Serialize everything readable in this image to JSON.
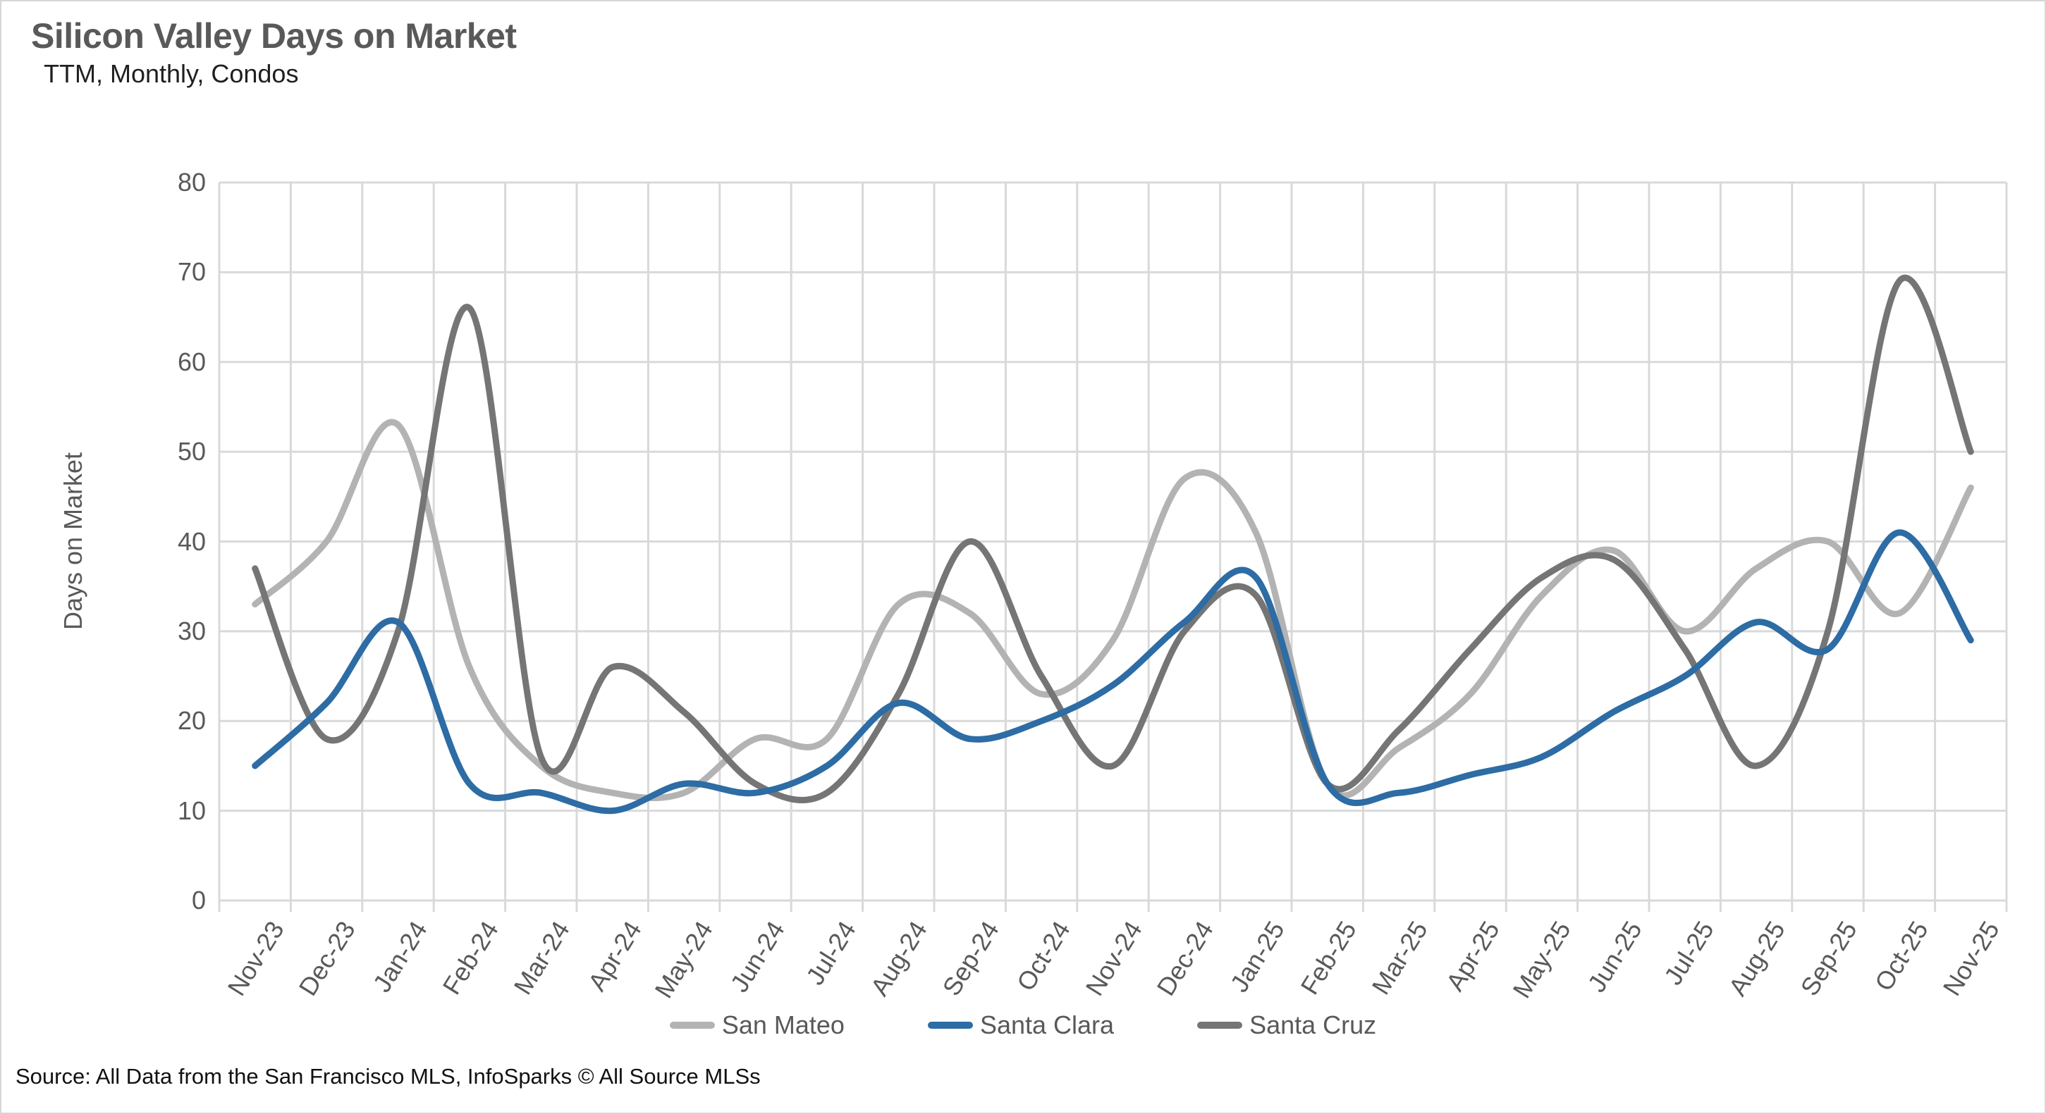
{
  "header": {
    "title": "Silicon Valley Days on Market",
    "subtitle": "TTM, Monthly, Condos"
  },
  "source_note": "Source: All Data from the San Francisco MLS, InfoSparks © All Source MLSs",
  "colors": {
    "grid": "#d9d9d9",
    "axis_text": "#595959",
    "title_text": "#595959",
    "san_mateo": "#b3b3b3",
    "santa_clara": "#2d6ca4",
    "santa_cruz": "#757575"
  },
  "chart_data": {
    "type": "line",
    "title": "Silicon Valley Days on Market",
    "subtitle": "TTM, Monthly, Condos",
    "xlabel": "",
    "ylabel": "Days on Market",
    "ylim": [
      0,
      80
    ],
    "yticks": [
      0,
      10,
      20,
      30,
      40,
      50,
      60,
      70,
      80
    ],
    "grid": true,
    "smoothed_lines": true,
    "legend_position": "bottom",
    "categories": [
      "Nov-23",
      "Dec-23",
      "Jan-24",
      "Feb-24",
      "Mar-24",
      "Apr-24",
      "May-24",
      "Jun-24",
      "Jul-24",
      "Aug-24",
      "Sep-24",
      "Oct-24",
      "Nov-24",
      "Dec-24",
      "Jan-25",
      "Feb-25",
      "Mar-25",
      "Apr-25",
      "May-25",
      "Jun-25",
      "Jul-25",
      "Aug-25",
      "Sep-25",
      "Oct-25",
      "Nov-25"
    ],
    "series": [
      {
        "name": "San Mateo",
        "color": "#b3b3b3",
        "values": [
          33,
          40,
          53,
          26,
          15,
          12,
          12,
          18,
          18,
          33,
          32,
          23,
          29,
          47,
          41,
          13,
          17,
          23,
          34,
          39,
          30,
          37,
          40,
          32,
          46
        ]
      },
      {
        "name": "Santa Clara",
        "color": "#2d6ca4",
        "values": [
          15,
          22,
          31,
          13,
          12,
          10,
          13,
          12,
          15,
          22,
          18,
          20,
          24,
          31,
          36,
          13,
          12,
          14,
          16,
          21,
          25,
          31,
          28,
          41,
          29
        ]
      },
      {
        "name": "Santa Cruz",
        "color": "#757575",
        "values": [
          37,
          18,
          30,
          66,
          16,
          26,
          21,
          13,
          12,
          23,
          40,
          25,
          15,
          30,
          34,
          13,
          19,
          28,
          36,
          38,
          28,
          15,
          30,
          69,
          50
        ]
      }
    ]
  }
}
